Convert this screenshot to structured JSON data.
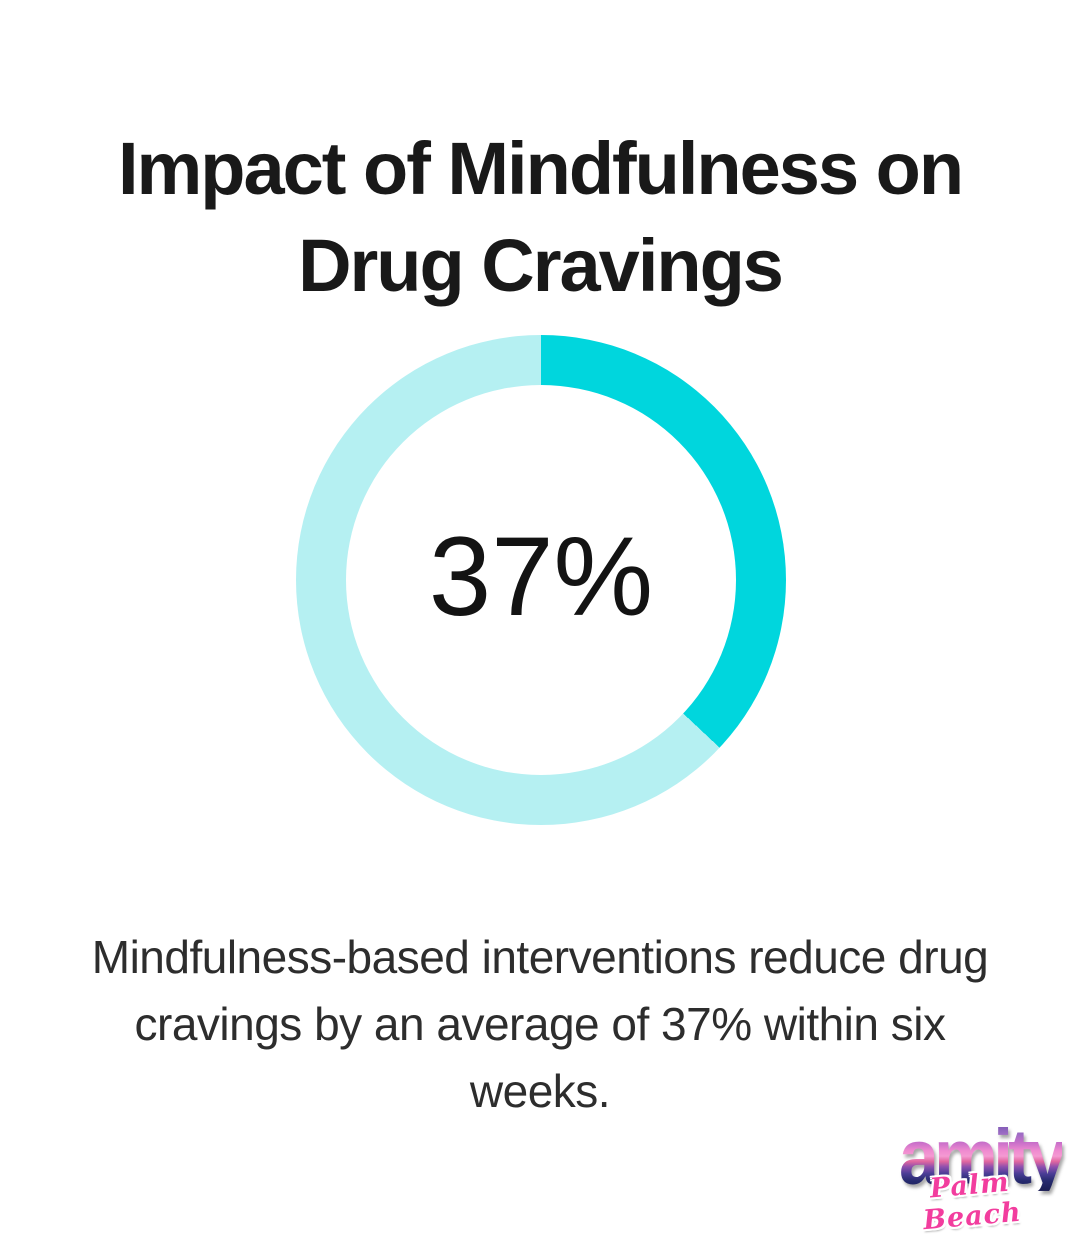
{
  "page": {
    "background_color": "#ffffff",
    "title_full": "Impact of Mindfulness on Drug Cravings",
    "title_lines": [
      "Impact of Mindfulness on",
      "Drug Cravings"
    ]
  },
  "chart_data": {
    "type": "pie",
    "subtype": "donut",
    "title": "Impact of Mindfulness on Drug Cravings",
    "center_label": "37%",
    "value_percent": 37,
    "start_angle_deg": 0,
    "direction": "clockwise",
    "hole_ratio": 0.8,
    "legend": "none",
    "segments": [
      {
        "name": "craving-reduction",
        "value": 37,
        "color": "#00d6dd"
      },
      {
        "name": "remainder",
        "value": 63,
        "color": "#b5f0f2"
      }
    ]
  },
  "caption": {
    "full_text": "Mindfulness-based interventions reduce drug cravings by an average of 37% within six weeks.",
    "lines": [
      "Mindfulness-based interventions reduce drug",
      "cravings by an average of 37% within six",
      "weeks."
    ]
  },
  "brand": {
    "name": "amity",
    "tagline": "Palm Beach",
    "script_color": "#f23d9e"
  }
}
